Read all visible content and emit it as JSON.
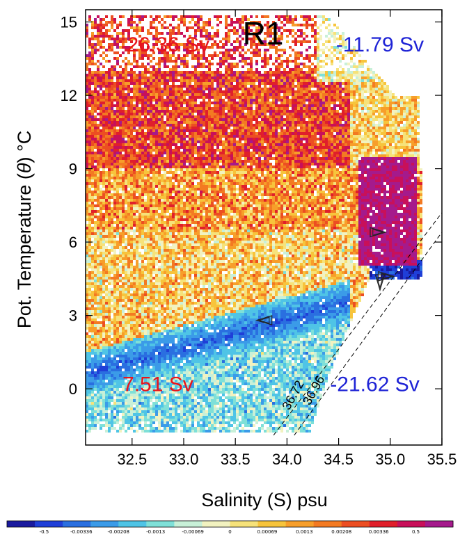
{
  "chart_data": {
    "type": "heatmap",
    "title": "R1",
    "xlabel": "Salinity (S) psu",
    "ylabel_prefix": "Pot. Temperature (",
    "ylabel_symbol": "θ",
    "ylabel_suffix": ") °C",
    "xlim": [
      32.05,
      35.5
    ],
    "ylim": [
      -2.3,
      15.5
    ],
    "xticks": [
      "32.5",
      "33.0",
      "33.5",
      "34.0",
      "34.5",
      "35.0",
      "35.5"
    ],
    "yticks": [
      "0",
      "3",
      "6",
      "9",
      "12",
      "15"
    ],
    "transport_labels": [
      {
        "text": "26.36 Sv",
        "color": "#e8141c",
        "x": 32.85,
        "y": 13.8
      },
      {
        "text": "-11.79 Sv",
        "color": "#1f24d6",
        "x": 34.9,
        "y": 13.8
      },
      {
        "text": "7.51 Sv",
        "color": "#e8141c",
        "x": 32.75,
        "y": -0.1
      },
      {
        "text": "-21.62 Sv",
        "color": "#1f24d6",
        "x": 34.85,
        "y": -0.1
      }
    ],
    "isopycnals": [
      {
        "label": "36.72",
        "points": [
          [
            33.87,
            -1.9
          ],
          [
            35.5,
            7.2
          ]
        ],
        "label_at": [
          34.02,
          -0.9
        ],
        "angle": -61
      },
      {
        "label": "36.96",
        "points": [
          [
            34.07,
            -1.9
          ],
          [
            35.5,
            6.4
          ]
        ],
        "label_at": [
          34.22,
          -0.7
        ],
        "angle": -61
      }
    ],
    "markers": [
      {
        "x": 34.88,
        "y": 6.4,
        "dir": "right"
      },
      {
        "x": 34.96,
        "y": 4.6,
        "dir": "right"
      },
      {
        "x": 34.9,
        "y": 4.35,
        "dir": "down"
      },
      {
        "x": 33.78,
        "y": 2.8,
        "dir": "left"
      }
    ],
    "colorbar": {
      "ticks": [
        "-0.5",
        "-0.00336",
        "-0.00208",
        "-0.0013",
        "-0.00069",
        "0",
        "0.00069",
        "0.0013",
        "0.00208",
        "0.00336",
        "0.5"
      ],
      "colors": [
        "#1a1a9e",
        "#1f3fd8",
        "#2a6fe0",
        "#3b9be8",
        "#4fc4e6",
        "#7fe0d8",
        "#c8f0d8",
        "#f2f2c0",
        "#f6e27a",
        "#f7c43c",
        "#f79e2a",
        "#f37a22",
        "#ec4e22",
        "#e01f2b",
        "#c8105a",
        "#a51a8c"
      ]
    }
  }
}
